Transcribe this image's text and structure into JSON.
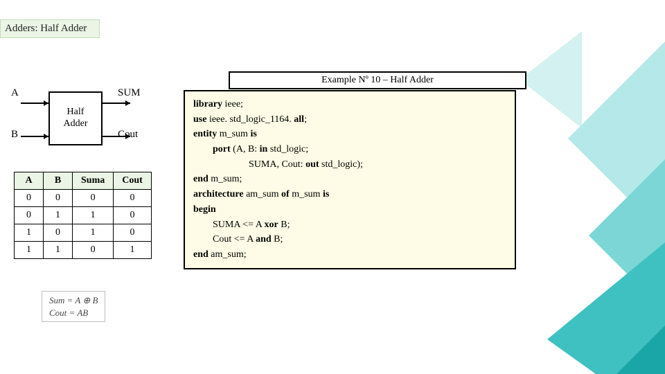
{
  "title": "Adders: Half Adder",
  "diagram": {
    "block_label": "Half\nAdder",
    "ports": {
      "A": "A",
      "B": "B",
      "SUM": "SUM",
      "Cout": "Cout"
    }
  },
  "truth_table": {
    "columns": [
      "A",
      "B",
      "Suma",
      "Cout"
    ],
    "rows": [
      [
        "0",
        "0",
        "0",
        "0"
      ],
      [
        "0",
        "1",
        "1",
        "0"
      ],
      [
        "1",
        "0",
        "1",
        "0"
      ],
      [
        "1",
        "1",
        "0",
        "1"
      ]
    ]
  },
  "formulas": {
    "line1": "Sum = A ⊕ B",
    "line2": "Cout = AB"
  },
  "example_title": "Example Nº 10 – Half Adder",
  "code": {
    "l1a": "library",
    "l1b": " ieee;",
    "l2a": "use",
    "l2b": " ieee. std_logic_1164. ",
    "l2c": "all",
    "l2d": ";",
    "l3a": "entity",
    "l3b": " m_sum ",
    "l3c": "is",
    "l4a": "port",
    "l4b": " (A, B: ",
    "l4c": "in",
    "l4d": " std_logic;",
    "l5": "SUMA, Cout: ",
    "l5a": "out",
    "l5b": " std_logic);",
    "l6a": "end",
    "l6b": " m_sum;",
    "l7a": "architecture",
    "l7b": " am_sum ",
    "l7c": "of",
    "l7d": " m_sum ",
    "l7e": "is",
    "l8": "begin",
    "l9": "SUMA <= A ",
    "l9a": "xor",
    "l9b": " B;",
    "l10": "Cout <= A ",
    "l10a": "and",
    "l10b": " B;",
    "l11a": "end",
    "l11b": " am_sum;"
  },
  "bg_colors": {
    "teal1": "#1aa6a6",
    "teal2": "#3fc1c1",
    "teal3": "#7cd6d6",
    "teal4": "#b5e8e8"
  }
}
